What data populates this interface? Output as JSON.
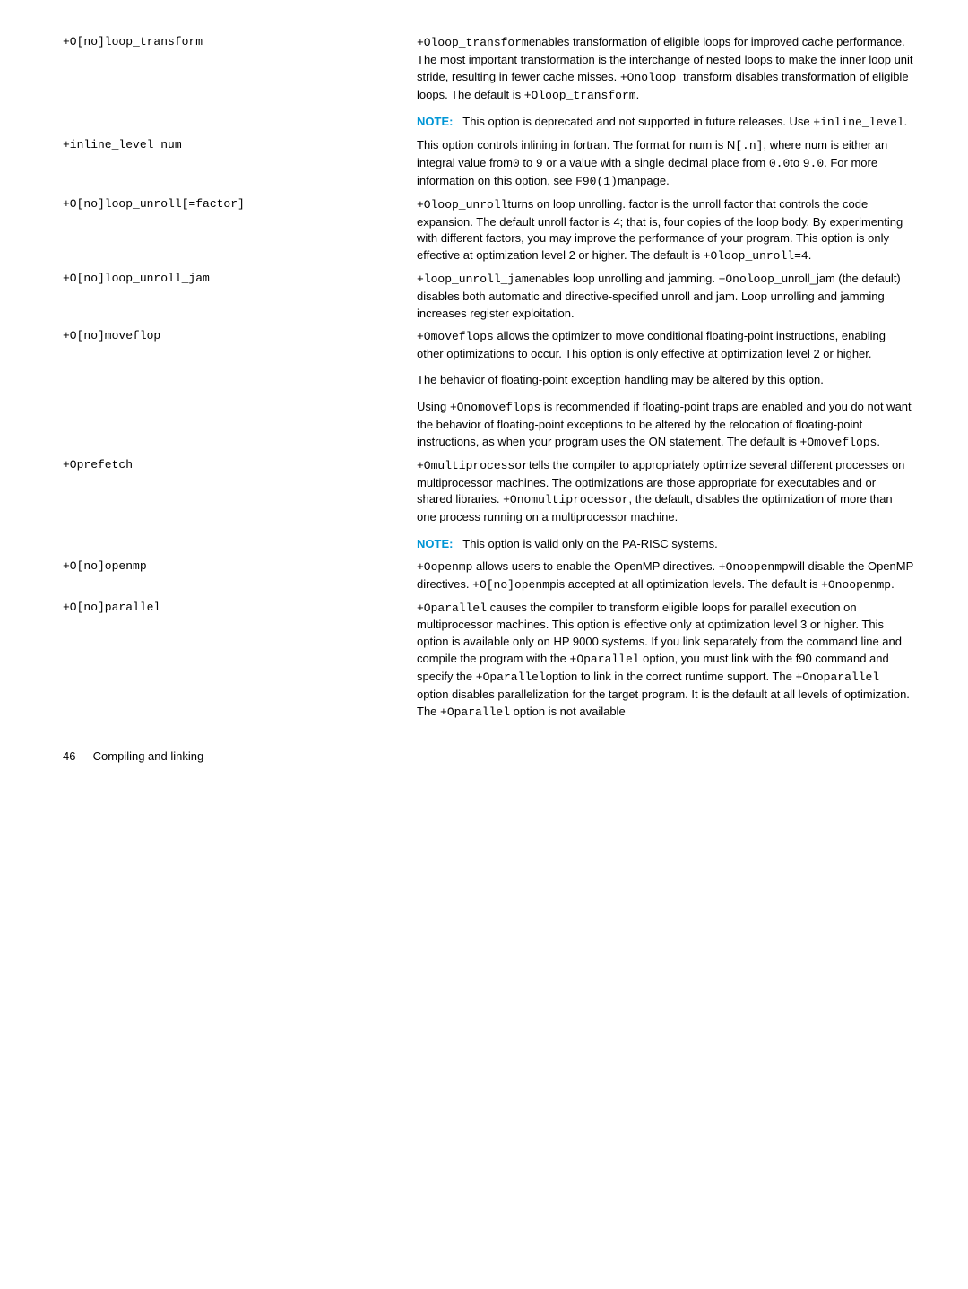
{
  "rows": [
    {
      "option": "+O[no]loop_transform",
      "paras": [
        "<code>+Oloop_transform</code>enables transformation of eligible loops for improved cache performance. The most important transformation is the interchange of nested loops to make the inner loop unit stride, resulting in fewer cache misses. <code>+Onoloop_</code>transform disables transformation of eligible loops. The default is <code>+Oloop_transform</code>.",
        "<span class=\"note-label\">NOTE:</span>&nbsp;&nbsp;&nbsp;This option is deprecated and not supported in future releases. Use <code>+inline_level</code>."
      ]
    },
    {
      "option": "+inline_level num",
      "paras": [
        "This option controls inlining in fortran. The format for num is N<code>[.n]</code>, where num is either an integral value from<code>0</code> to <code>9</code> or a value with a single decimal place from <code>0.0</code>to <code>9.0</code>. For more information on this option, see <code>F90(1)</code>manpage."
      ]
    },
    {
      "option": "+O[no]loop_unroll[=factor]",
      "paras": [
        "<code>+Oloop_unroll</code>turns on loop unrolling. factor is the unroll factor that controls the code expansion. The default unroll factor is 4; that is, four copies of the loop body. By experimenting with different factors, you may improve the performance of your program. This option is only effective at optimization level 2 or higher. The default is <code>+Oloop_unroll=4</code>."
      ]
    },
    {
      "option": "+O[no]loop_unroll_jam",
      "paras": [
        "<code>+loop_unroll_jam</code>enables loop unrolling and jamming. <code>+Onoloop_</code>unroll_jam (the default) disables both automatic and directive-specified unroll and jam. Loop unrolling and jamming increases register exploitation."
      ]
    },
    {
      "option": "+O[no]moveflop",
      "paras": [
        "<code>+Omoveflops</code> allows the optimizer to move conditional floating-point instructions, enabling other optimizations to occur. This option is only effective at optimization level 2 or higher.",
        "The behavior of floating-point exception handling may be altered by this option.",
        "Using <code>+Onomoveflops</code> is recommended if floating-point traps are enabled and you do not want the behavior of floating-point exceptions to be altered by the relocation of floating-point instructions, as when your program uses the ON statement. The default is <code>+Omoveflops</code>."
      ]
    },
    {
      "option": "+Oprefetch",
      "paras": [
        "<code>+Omultiprocessor</code>tells the compiler to appropriately optimize several different processes on multiprocessor machines. The optimizations are those appropriate for executables and or shared libraries. <code>+Onomultiprocessor</code>, the default, disables the optimization of more than one process running on a multiprocessor machine.",
        "<span class=\"note-label\">NOTE:</span>&nbsp;&nbsp;&nbsp;This option is valid only on the PA-RISC systems."
      ]
    },
    {
      "option": "+O[no]openmp",
      "paras": [
        "<code>+Oopenmp</code> allows users to enable the OpenMP directives. <code>+Onoopenmp</code>will disable the OpenMP directives. <code>+O[no]openmp</code>is accepted at all optimization levels. The default is <code>+Onoopenmp</code>."
      ]
    },
    {
      "option": "+O[no]parallel",
      "paras": [
        "<code>+Oparallel</code> causes the compiler to transform eligible loops for parallel execution on multiprocessor machines. This option is effective only at optimization level 3 or higher. This option is available only on HP 9000 systems. If you link separately from the command line and compile the program with the <code>+Oparallel</code> option, you must link with the f90 command and specify the <code>+Oparallel</code>option to link in the correct runtime support. The <code>+Onoparallel</code> option disables parallelization for the target program. It is the default at all levels of optimization. The <code>+Oparallel</code> option is not available"
      ]
    }
  ],
  "footer": {
    "page": "46",
    "title": "Compiling and linking"
  }
}
